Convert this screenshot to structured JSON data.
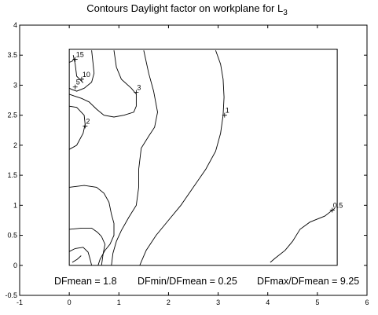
{
  "chart_data": {
    "type": "line",
    "title": "Contours Daylight factor on workplane  for L",
    "title_subscript": "3",
    "xlim": [
      -1,
      6
    ],
    "ylim": [
      -0.5,
      4
    ],
    "x_ticks": [
      "-1",
      "0",
      "1",
      "2",
      "3",
      "4",
      "5",
      "6"
    ],
    "y_ticks": [
      "-0.5",
      "0",
      "0.5",
      "1",
      "1.5",
      "2",
      "2.5",
      "3",
      "3.5",
      "4"
    ],
    "grid": false,
    "room_outline": {
      "x": [
        0,
        5.4
      ],
      "y": [
        0,
        3.6
      ]
    },
    "contours": [
      {
        "level": "15",
        "label_at": [
          0.12,
          3.43
        ],
        "paths": [
          [
            [
              0,
              3.38
            ],
            [
              0.06,
              3.4
            ],
            [
              0.1,
              3.45
            ]
          ],
          [
            [
              0.06,
              0.05
            ],
            [
              0.16,
              0.1
            ],
            [
              0.24,
              0.16
            ]
          ]
        ]
      },
      {
        "level": "10",
        "label_at": [
          0.25,
          3.1
        ],
        "paths": [
          [
            [
              0.08,
              3.5
            ],
            [
              0.12,
              3.35
            ],
            [
              0.15,
              3.15
            ],
            [
              0.28,
              3.04
            ]
          ],
          [
            [
              0.0,
              0.23
            ],
            [
              0.12,
              0.28
            ],
            [
              0.28,
              0.3
            ],
            [
              0.38,
              0.22
            ],
            [
              0.42,
              0.1
            ],
            [
              0.45,
              0.0
            ]
          ]
        ]
      },
      {
        "level": "5",
        "label_at": [
          0.12,
          2.97
        ],
        "paths": [
          [
            [
              0.45,
              3.58
            ],
            [
              0.48,
              3.35
            ],
            [
              0.5,
              3.2
            ],
            [
              0.45,
              3.05
            ],
            [
              0.3,
              2.95
            ],
            [
              0.15,
              2.9
            ],
            [
              0.05,
              2.93
            ],
            [
              0.0,
              2.95
            ]
          ],
          [
            [
              0.0,
              0.6
            ],
            [
              0.25,
              0.62
            ],
            [
              0.45,
              0.62
            ],
            [
              0.57,
              0.55
            ],
            [
              0.65,
              0.48
            ],
            [
              0.72,
              0.35
            ],
            [
              0.68,
              0.18
            ],
            [
              0.65,
              0.0
            ]
          ]
        ]
      },
      {
        "level": "3",
        "label_at": [
          1.35,
          2.88
        ],
        "paths": [
          [
            [
              0.9,
              3.58
            ],
            [
              0.95,
              3.3
            ],
            [
              1.05,
              3.1
            ],
            [
              1.25,
              2.95
            ],
            [
              1.35,
              2.85
            ],
            [
              1.35,
              2.65
            ],
            [
              1.3,
              2.55
            ],
            [
              1.1,
              2.5
            ],
            [
              0.9,
              2.47
            ],
            [
              0.7,
              2.5
            ],
            [
              0.55,
              2.6
            ],
            [
              0.4,
              2.72
            ],
            [
              0.25,
              2.78
            ],
            [
              0.1,
              2.82
            ],
            [
              0.0,
              2.85
            ]
          ],
          [
            [
              0.0,
              1.3
            ],
            [
              0.3,
              1.33
            ],
            [
              0.55,
              1.3
            ],
            [
              0.7,
              1.2
            ],
            [
              0.8,
              1.05
            ],
            [
              0.85,
              0.85
            ],
            [
              0.9,
              0.7
            ],
            [
              0.9,
              0.5
            ],
            [
              0.82,
              0.35
            ],
            [
              0.72,
              0.25
            ],
            [
              0.62,
              0.1
            ],
            [
              0.58,
              0.0
            ]
          ]
        ]
      },
      {
        "level": "2",
        "label_at": [
          0.32,
          2.32
        ],
        "paths": [
          [
            [
              0.0,
              1.93
            ],
            [
              0.15,
              2.0
            ],
            [
              0.28,
              2.2
            ],
            [
              0.32,
              2.35
            ],
            [
              0.3,
              2.5
            ],
            [
              0.15,
              2.63
            ],
            [
              0.0,
              2.65
            ]
          ],
          [
            [
              1.5,
              3.58
            ],
            [
              1.6,
              3.2
            ],
            [
              1.7,
              2.9
            ],
            [
              1.78,
              2.55
            ],
            [
              1.72,
              2.3
            ],
            [
              1.6,
              2.15
            ],
            [
              1.45,
              1.95
            ],
            [
              1.4,
              1.6
            ],
            [
              1.4,
              1.3
            ],
            [
              1.35,
              1.0
            ],
            [
              1.2,
              0.8
            ],
            [
              1.05,
              0.58
            ],
            [
              0.95,
              0.4
            ],
            [
              0.88,
              0.2
            ],
            [
              0.85,
              0.0
            ]
          ]
        ]
      },
      {
        "level": "1",
        "label_at": [
          3.13,
          2.5
        ],
        "paths": [
          [
            [
              2.95,
              3.58
            ],
            [
              3.05,
              3.35
            ],
            [
              3.1,
              3.1
            ],
            [
              3.12,
              2.8
            ],
            [
              3.1,
              2.5
            ],
            [
              3.05,
              2.2
            ],
            [
              2.95,
              1.9
            ],
            [
              2.75,
              1.6
            ],
            [
              2.5,
              1.3
            ],
            [
              2.25,
              1.0
            ],
            [
              2.0,
              0.75
            ],
            [
              1.75,
              0.5
            ],
            [
              1.55,
              0.25
            ],
            [
              1.42,
              0.0
            ]
          ]
        ]
      },
      {
        "level": "0.5",
        "label_at": [
          5.3,
          0.92
        ],
        "paths": [
          [
            [
              5.35,
              0.95
            ],
            [
              5.15,
              0.82
            ],
            [
              4.85,
              0.72
            ],
            [
              4.65,
              0.6
            ],
            [
              4.5,
              0.4
            ],
            [
              4.35,
              0.25
            ],
            [
              4.15,
              0.12
            ],
            [
              4.05,
              0.05
            ]
          ]
        ]
      }
    ],
    "annotation_labels": {
      "mean": "DFmean =  1.8",
      "ratio_min": "DFmin/DFmean = 0.25",
      "ratio_max": "DFmax/DFmean =  9.25"
    }
  }
}
